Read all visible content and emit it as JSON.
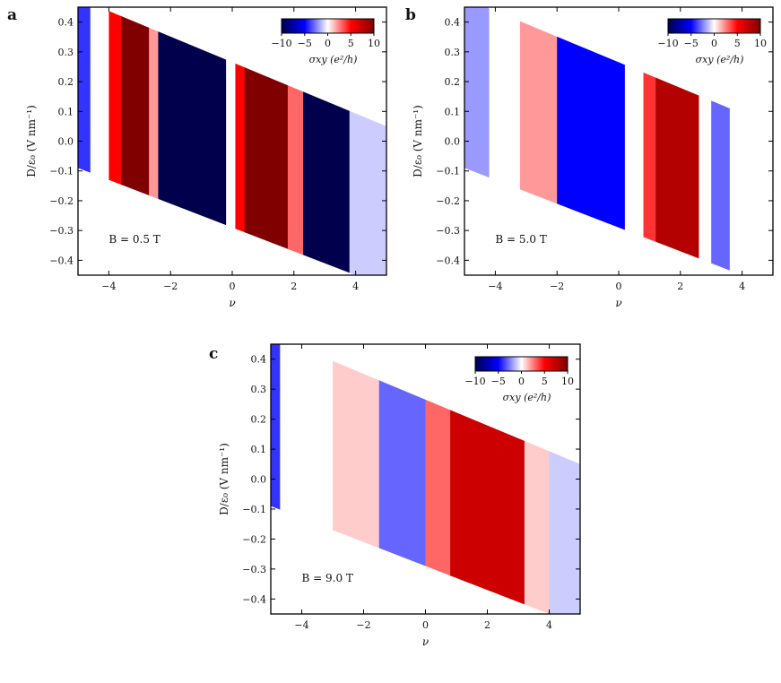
{
  "chart_data": [
    {
      "type": "heatmap",
      "panel": "a",
      "annotation": "B = 0.5 T",
      "xlabel": "ν",
      "ylabel": "D/ε₀ (V nm⁻¹)",
      "xlim": [
        -5,
        5
      ],
      "ylim": [
        -0.45,
        0.45
      ],
      "xticks": [
        -4,
        -2,
        0,
        2,
        4
      ],
      "xtick_labels": [
        "−4",
        "−2",
        "0",
        "2",
        "4"
      ],
      "yticks": [
        -0.4,
        -0.3,
        -0.2,
        -0.1,
        0.0,
        0.1,
        0.2,
        0.3,
        0.4
      ],
      "ytick_labels": [
        "−0.4",
        "−0.3",
        "−0.2",
        "−0.1",
        "0.0",
        "0.1",
        "0.2",
        "0.3",
        "0.4"
      ],
      "colorbar": {
        "label": "σxy (e²/h)",
        "range": [
          -10,
          10
        ],
        "ticks": [
          -10,
          -5,
          0,
          5,
          10
        ],
        "tick_labels": [
          "−10",
          "−5",
          "0",
          "5",
          "10"
        ],
        "colormap": "seismic"
      },
      "stripes": [
        {
          "x_from": -5.0,
          "x_to": -4.6,
          "value": -4
        },
        {
          "x_from": -4.6,
          "x_to": -4.0,
          "value": 0
        },
        {
          "x_from": -4.0,
          "x_to": -3.6,
          "value": 5
        },
        {
          "x_from": -3.6,
          "x_to": -2.7,
          "value": 10
        },
        {
          "x_from": -2.7,
          "x_to": -2.4,
          "value": 2
        },
        {
          "x_from": -2.4,
          "x_to": -0.2,
          "value": -10
        },
        {
          "x_from": -0.2,
          "x_to": 0.1,
          "value": 0
        },
        {
          "x_from": 0.1,
          "x_to": 0.4,
          "value": 5
        },
        {
          "x_from": 0.4,
          "x_to": 1.8,
          "value": 10
        },
        {
          "x_from": 1.8,
          "x_to": 2.3,
          "value": 3
        },
        {
          "x_from": 2.3,
          "x_to": 3.8,
          "value": -10
        },
        {
          "x_from": 3.8,
          "x_to": 5.0,
          "value": -1
        }
      ]
    },
    {
      "type": "heatmap",
      "panel": "b",
      "annotation": "B = 5.0 T",
      "xlabel": "ν",
      "ylabel": "D/ε₀ (V nm⁻¹)",
      "xlim": [
        -5,
        5
      ],
      "ylim": [
        -0.45,
        0.45
      ],
      "xticks": [
        -4,
        -2,
        0,
        2,
        4
      ],
      "xtick_labels": [
        "−4",
        "−2",
        "0",
        "2",
        "4"
      ],
      "yticks": [
        -0.4,
        -0.3,
        -0.2,
        -0.1,
        0.0,
        0.1,
        0.2,
        0.3,
        0.4
      ],
      "ytick_labels": [
        "−0.4",
        "−0.3",
        "−0.2",
        "−0.1",
        "0.0",
        "0.1",
        "0.2",
        "0.3",
        "0.4"
      ],
      "colorbar": {
        "label": "σxy (e²/h)",
        "range": [
          -10,
          10
        ],
        "ticks": [
          -10,
          -5,
          0,
          5,
          10
        ],
        "tick_labels": [
          "−10",
          "−5",
          "0",
          "5",
          "10"
        ],
        "colormap": "seismic"
      },
      "stripes": [
        {
          "x_from": -5.0,
          "x_to": -4.2,
          "value": -2
        },
        {
          "x_from": -4.2,
          "x_to": -3.2,
          "value": 0
        },
        {
          "x_from": -3.2,
          "x_to": -2.0,
          "value": 2
        },
        {
          "x_from": -2.0,
          "x_to": 0.2,
          "value": -5
        },
        {
          "x_from": 0.2,
          "x_to": 0.8,
          "value": 0
        },
        {
          "x_from": 0.8,
          "x_to": 1.2,
          "value": 4
        },
        {
          "x_from": 1.2,
          "x_to": 2.6,
          "value": 8
        },
        {
          "x_from": 2.6,
          "x_to": 3.0,
          "value": 0
        },
        {
          "x_from": 3.0,
          "x_to": 3.6,
          "value": -3
        },
        {
          "x_from": 3.6,
          "x_to": 5.0,
          "value": 0
        }
      ]
    },
    {
      "type": "heatmap",
      "panel": "c",
      "annotation": "B = 9.0 T",
      "xlabel": "ν",
      "ylabel": "D/ε₀ (V nm⁻¹)",
      "xlim": [
        -5,
        5
      ],
      "ylim": [
        -0.45,
        0.45
      ],
      "xticks": [
        -4,
        -2,
        0,
        2,
        4
      ],
      "xtick_labels": [
        "−4",
        "−2",
        "0",
        "2",
        "4"
      ],
      "yticks": [
        -0.4,
        -0.3,
        -0.2,
        -0.1,
        0.0,
        0.1,
        0.2,
        0.3,
        0.4
      ],
      "ytick_labels": [
        "−0.4",
        "−0.3",
        "−0.2",
        "−0.1",
        "0.0",
        "0.1",
        "0.2",
        "0.3",
        "0.4"
      ],
      "colorbar": {
        "label": "σxy (e²/h)",
        "range": [
          -10,
          10
        ],
        "ticks": [
          -10,
          -5,
          0,
          5,
          10
        ],
        "tick_labels": [
          "−10",
          "−5",
          "0",
          "5",
          "10"
        ],
        "colormap": "seismic"
      },
      "stripes": [
        {
          "x_from": -5.0,
          "x_to": -4.7,
          "value": -4
        },
        {
          "x_from": -4.7,
          "x_to": -3.0,
          "value": 0
        },
        {
          "x_from": -3.0,
          "x_to": -1.5,
          "value": 1
        },
        {
          "x_from": -1.5,
          "x_to": 0.0,
          "value": -3
        },
        {
          "x_from": 0.0,
          "x_to": 0.8,
          "value": 3
        },
        {
          "x_from": 0.8,
          "x_to": 3.2,
          "value": 7
        },
        {
          "x_from": 3.2,
          "x_to": 4.0,
          "value": 1
        },
        {
          "x_from": 4.0,
          "x_to": 5.0,
          "value": -1
        }
      ]
    }
  ]
}
